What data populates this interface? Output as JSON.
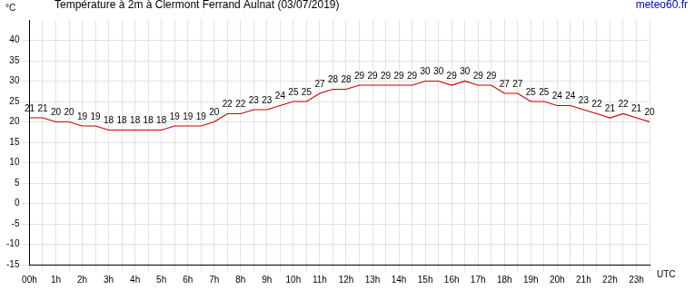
{
  "chart_data": {
    "type": "line",
    "title": "Température à 2m à Clermont Ferrand Aulnat (03/07/2019)",
    "annotations": [
      "meteo60.fr"
    ],
    "y_label": "°C",
    "x_label": "UTC",
    "categories": [
      "00h",
      null,
      "1h",
      null,
      "2h",
      null,
      "3h",
      null,
      "4h",
      null,
      "5h",
      null,
      "6h",
      null,
      "7h",
      null,
      "8h",
      null,
      "9h",
      null,
      "10h",
      null,
      "11h",
      null,
      "12h",
      null,
      "13h",
      null,
      "14h",
      null,
      "15h",
      null,
      "16h",
      null,
      "17h",
      null,
      "18h",
      null,
      "19h",
      null,
      "20h",
      null,
      "21h",
      null,
      "22h",
      null,
      "23h",
      null
    ],
    "values": [
      21,
      21,
      20,
      20,
      19,
      19,
      18,
      18,
      18,
      18,
      18,
      19,
      19,
      19,
      20,
      22,
      22,
      23,
      23,
      24,
      25,
      25,
      27,
      28,
      28,
      29,
      29,
      29,
      29,
      29,
      30,
      30,
      29,
      30,
      29,
      29,
      27,
      27,
      25,
      25,
      24,
      24,
      23,
      22,
      21,
      22,
      21,
      20
    ],
    "color": "#cc0000",
    "ylim": [
      -15,
      45
    ],
    "yticks": [
      -15,
      -10,
      -5,
      0,
      5,
      10,
      15,
      20,
      25,
      30,
      35,
      40
    ],
    "grid": true,
    "data_labels": true
  }
}
